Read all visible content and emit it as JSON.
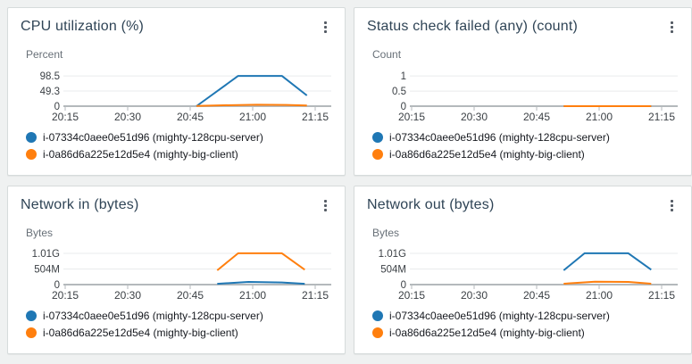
{
  "colors": {
    "series_blue": "#1f77b4",
    "series_orange": "#ff7f0e",
    "axis_line": "#b4b9bc",
    "gridline": "#e9ebec",
    "title_text": "#2f4456",
    "tick_text": "#3b4045",
    "unit_text": "#687078",
    "legend_text": "#16191f",
    "menu_icon": "#545b64",
    "panel_border": "#d6dbdb",
    "panel_bg": "#ffffff",
    "page_bg": "#eff1f1"
  },
  "menu_icon_name": "kebab-menu-icon",
  "chart_data": [
    {
      "type": "line",
      "title": "CPU utilization (%)",
      "ylabel": "Percent",
      "xlabel": "",
      "grid": true,
      "legend_position": "bottom",
      "x_unit": "minutes_after_20:15",
      "x_range_minutes": [
        0,
        60
      ],
      "x_tick_minutes": [
        0,
        15,
        30,
        45,
        60
      ],
      "x_tick_labels": [
        "20:15",
        "20:30",
        "20:45",
        "21:00",
        "21:15"
      ],
      "ylim": [
        0,
        122
      ],
      "y_ticks": [
        {
          "label": "98.5",
          "value": 98.5
        },
        {
          "label": "49.3",
          "value": 49.3
        },
        {
          "label": "0",
          "value": 0
        }
      ],
      "series": [
        {
          "name": "i-07334c0aee0e51d96 (mighty-128cpu-server)",
          "color": "#1f77b4",
          "points": [
            [
              31.5,
              0
            ],
            [
              41.5,
              98.5
            ],
            [
              52,
              98.5
            ],
            [
              58,
              35
            ]
          ]
        },
        {
          "name": "i-0a86d6a225e12d5e4 (mighty-big-client)",
          "color": "#ff7f0e",
          "points": [
            [
              31.5,
              0.8
            ],
            [
              38,
              3
            ],
            [
              46,
              4.6
            ],
            [
              53,
              4
            ],
            [
              58,
              2
            ]
          ]
        }
      ]
    },
    {
      "type": "line",
      "title": "Status check failed (any) (count)",
      "ylabel": "Count",
      "xlabel": "",
      "grid": true,
      "legend_position": "bottom",
      "x_unit": "minutes_after_20:15",
      "x_range_minutes": [
        0,
        60
      ],
      "x_tick_minutes": [
        0,
        15,
        30,
        45,
        60
      ],
      "x_tick_labels": [
        "20:15",
        "20:30",
        "20:45",
        "21:00",
        "21:15"
      ],
      "ylim": [
        0,
        1.24
      ],
      "y_ticks": [
        {
          "label": "1",
          "value": 1
        },
        {
          "label": "0.5",
          "value": 0.5
        },
        {
          "label": "0",
          "value": 0
        }
      ],
      "series": [
        {
          "name": "i-07334c0aee0e51d96 (mighty-128cpu-server)",
          "color": "#1f77b4",
          "points": [
            [
              36.5,
              0
            ],
            [
              57.5,
              0
            ]
          ]
        },
        {
          "name": "i-0a86d6a225e12d5e4 (mighty-big-client)",
          "color": "#ff7f0e",
          "points": [
            [
              36.5,
              0
            ],
            [
              57.5,
              0
            ]
          ]
        }
      ]
    },
    {
      "type": "line",
      "title": "Network in (bytes)",
      "ylabel": "Bytes",
      "xlabel": "",
      "grid": true,
      "legend_position": "bottom",
      "x_unit": "minutes_after_20:15",
      "x_range_minutes": [
        0,
        60
      ],
      "x_tick_minutes": [
        0,
        15,
        30,
        45,
        60
      ],
      "x_tick_labels": [
        "20:15",
        "20:30",
        "20:45",
        "21:00",
        "21:15"
      ],
      "ylim": [
        0,
        1210000000
      ],
      "y_ticks": [
        {
          "label": "1.01G",
          "value": 1010000000
        },
        {
          "label": "504M",
          "value": 504000000
        },
        {
          "label": "0",
          "value": 0
        }
      ],
      "series": [
        {
          "name": "i-07334c0aee0e51d96 (mighty-128cpu-server)",
          "color": "#1f77b4",
          "points": [
            [
              36.5,
              25000000
            ],
            [
              44,
              85000000
            ],
            [
              52,
              70000000
            ],
            [
              57.5,
              25000000
            ]
          ]
        },
        {
          "name": "i-0a86d6a225e12d5e4 (mighty-big-client)",
          "color": "#ff7f0e",
          "points": [
            [
              36.5,
              460000000
            ],
            [
              41.5,
              1010000000
            ],
            [
              52,
              1010000000
            ],
            [
              57.5,
              480000000
            ]
          ]
        }
      ]
    },
    {
      "type": "line",
      "title": "Network out (bytes)",
      "ylabel": "Bytes",
      "xlabel": "",
      "grid": true,
      "legend_position": "bottom",
      "x_unit": "minutes_after_20:15",
      "x_range_minutes": [
        0,
        60
      ],
      "x_tick_minutes": [
        0,
        15,
        30,
        45,
        60
      ],
      "x_tick_labels": [
        "20:15",
        "20:30",
        "20:45",
        "21:00",
        "21:15"
      ],
      "ylim": [
        0,
        1210000000
      ],
      "y_ticks": [
        {
          "label": "1.01G",
          "value": 1010000000
        },
        {
          "label": "504M",
          "value": 504000000
        },
        {
          "label": "0",
          "value": 0
        }
      ],
      "series": [
        {
          "name": "i-07334c0aee0e51d96 (mighty-128cpu-server)",
          "color": "#1f77b4",
          "points": [
            [
              36.5,
              460000000
            ],
            [
              41.5,
              1010000000
            ],
            [
              52,
              1010000000
            ],
            [
              57.5,
              480000000
            ]
          ]
        },
        {
          "name": "i-0a86d6a225e12d5e4 (mighty-big-client)",
          "color": "#ff7f0e",
          "points": [
            [
              36.5,
              30000000
            ],
            [
              44,
              95000000
            ],
            [
              52,
              85000000
            ],
            [
              57.5,
              30000000
            ]
          ]
        }
      ]
    }
  ]
}
